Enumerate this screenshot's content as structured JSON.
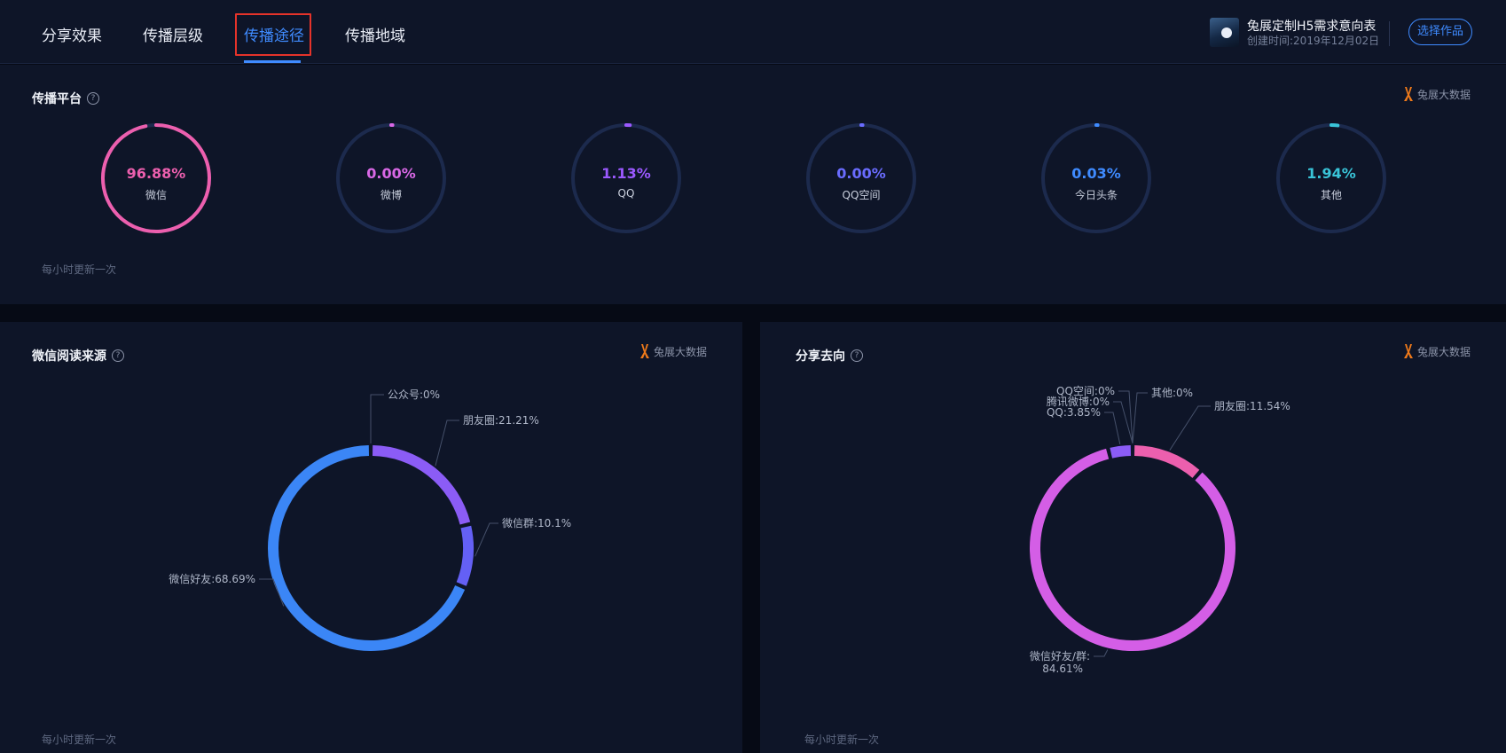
{
  "tabs": [
    {
      "label": "分享效果",
      "active": false
    },
    {
      "label": "传播层级",
      "active": false
    },
    {
      "label": "传播途径",
      "active": true
    },
    {
      "label": "传播地域",
      "active": false
    }
  ],
  "work": {
    "title": "兔展定制H5需求意向表",
    "created": "创建时间:2019年12月02日",
    "select_button": "选择作品"
  },
  "brand_label": "兔展大数据",
  "platform": {
    "title": "传播平台",
    "help": "?",
    "update_note": "每小时更新一次",
    "items": [
      {
        "value": "96.88%",
        "label": "微信",
        "fraction": 0.9688,
        "color": "#ec5fae"
      },
      {
        "value": "0.00%",
        "label": "微博",
        "fraction": 0.0,
        "color": "#d968e6"
      },
      {
        "value": "1.13%",
        "label": "QQ",
        "fraction": 0.0113,
        "color": "#9b59ff"
      },
      {
        "value": "0.00%",
        "label": "QQ空间",
        "fraction": 0.0,
        "color": "#6a6cff"
      },
      {
        "value": "0.03%",
        "label": "今日头条",
        "fraction": 0.0003,
        "color": "#3f8bff"
      },
      {
        "value": "1.94%",
        "label": "其他",
        "fraction": 0.0194,
        "color": "#39c4d8"
      }
    ]
  },
  "wechat_source": {
    "title": "微信阅读来源",
    "help": "?",
    "update_note": "每小时更新一次"
  },
  "share_direction": {
    "title": "分享去向",
    "help": "?",
    "update_note": "每小时更新一次"
  },
  "chart_data": [
    {
      "type": "pie",
      "title": "微信阅读来源",
      "categories": [
        "公众号",
        "朋友圈",
        "微信群",
        "微信好友"
      ],
      "values": [
        0,
        21.21,
        10.1,
        68.69
      ],
      "labels": [
        "公众号:0%",
        "朋友圈:21.21%",
        "微信群:10.1%",
        "微信好友:68.69%"
      ],
      "colors": [
        "#8b5cf6",
        "#8b5cf6",
        "#6460f5",
        "#3b86f6"
      ]
    },
    {
      "type": "pie",
      "title": "分享去向",
      "categories": [
        "朋友圈",
        "微信好友/群",
        "QQ",
        "腾讯微博",
        "QQ空间",
        "其他"
      ],
      "values": [
        11.54,
        84.61,
        3.85,
        0,
        0,
        0
      ],
      "labels": [
        "朋友圈:11.54%",
        "微信好友/群:",
        "QQ:3.85%",
        "腾讯微博:0%",
        "QQ空间:0%",
        "其他:0%"
      ],
      "sublabels": [
        "",
        "84.61%",
        "",
        "",
        "",
        ""
      ],
      "colors": [
        "#ec5fae",
        "#d45ee6",
        "#8b5cf6",
        "#6a6cff",
        "#3f8bff",
        "#39c4d8"
      ]
    }
  ]
}
